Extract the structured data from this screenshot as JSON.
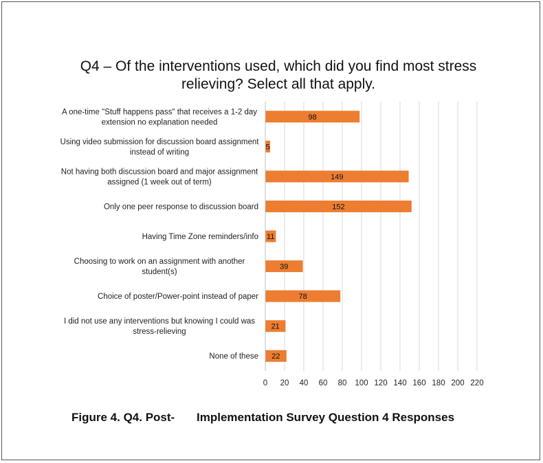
{
  "chart_data": {
    "type": "bar",
    "orientation": "horizontal",
    "title": "Q4 – Of the interventions used, which did you find most stress relieving?  Select all that apply.",
    "title_lines": [
      "Q4 – Of the interventions used, which did you find most stress",
      "relieving?  Select all that apply."
    ],
    "categories": [
      [
        "A one-time \"Stuff happens pass\" that receives a 1-2 day",
        "extension no explanation needed"
      ],
      [
        "Using video submission for discussion board assignment",
        "instead of writing"
      ],
      [
        "Not having both discussion board and major assignment",
        "assigned (1 week out of term)"
      ],
      [
        "Only one peer response to discussion board"
      ],
      [
        "Having Time Zone reminders/info"
      ],
      [
        "Choosing to work on an assignment with another",
        "student(s)"
      ],
      [
        "Choice of poster/Power-point instead of paper"
      ],
      [
        "I did not use any interventions but knowing I could was",
        "stress-relieving"
      ],
      [
        "None of these"
      ]
    ],
    "values": [
      98,
      5,
      149,
      152,
      11,
      39,
      78,
      21,
      22
    ],
    "xlim": [
      0,
      220
    ],
    "xticks": [
      0,
      20,
      40,
      60,
      80,
      100,
      120,
      140,
      160,
      180,
      200,
      220
    ],
    "grid": true,
    "bar_color": "#ed7d31",
    "grid_color": "#d9d9d9"
  },
  "caption": {
    "part1": "Figure 4. Q4. Post-",
    "part2": "Implementation Survey Question 4 Responses"
  }
}
